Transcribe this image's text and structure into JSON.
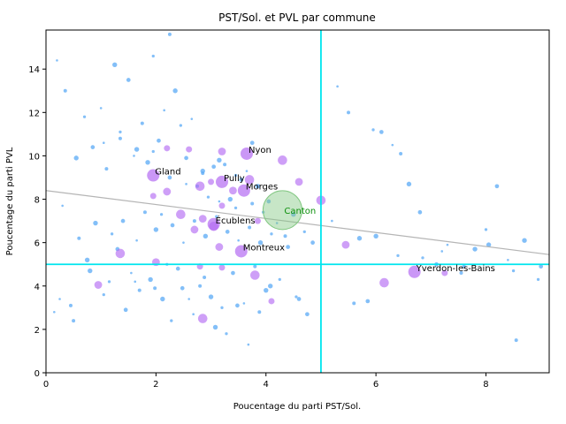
{
  "chart_data": {
    "type": "scatter",
    "title": "PST/Sol. et PVL par commune",
    "xlabel": "Poucentage du parti PST/Sol.",
    "ylabel": "Poucentage du parti PVL",
    "xlim": [
      0,
      9.15
    ],
    "ylim": [
      0,
      15.8
    ],
    "x_ticks": [
      0,
      2,
      4,
      6,
      8
    ],
    "y_ticks": [
      0,
      2,
      4,
      6,
      8,
      10,
      12,
      14
    ],
    "grid": false,
    "colors": {
      "small_points": "#5aaaf5",
      "large_points": "#b36bf2",
      "canton_point": "#82c782",
      "reference_lines": "#00e5ee",
      "regression_line": "#b5b5b5",
      "canton_label": "#0b8f0b"
    },
    "reference_lines": {
      "x": 5.0,
      "y": 5.0
    },
    "regression_line": {
      "x": [
        0,
        9.15
      ],
      "y": [
        8.4,
        5.45
      ]
    },
    "canton": {
      "x": 4.3,
      "y": 7.5,
      "label": "Canton"
    },
    "labeled_points": [
      {
        "label": "Nyon",
        "x": 3.65,
        "y": 10.1
      },
      {
        "label": "Gland",
        "x": 1.95,
        "y": 9.1
      },
      {
        "label": "Pully",
        "x": 3.2,
        "y": 8.8
      },
      {
        "label": "Morges",
        "x": 3.6,
        "y": 8.4
      },
      {
        "label": "Écublens",
        "x": 3.05,
        "y": 6.85
      },
      {
        "label": "Montreux",
        "x": 3.55,
        "y": 5.6
      },
      {
        "label": "Yverdon-les-Bains",
        "x": 6.7,
        "y": 4.65
      }
    ],
    "large_points": [
      [
        2.2,
        10.35
      ],
      [
        3.2,
        10.2
      ],
      [
        4.3,
        9.8
      ],
      [
        2.6,
        10.3
      ],
      [
        4.6,
        8.8
      ],
      [
        5.0,
        7.95
      ],
      [
        3.85,
        7.0
      ],
      [
        2.2,
        8.35
      ],
      [
        2.8,
        8.6
      ],
      [
        3.0,
        8.8
      ],
      [
        3.4,
        8.4
      ],
      [
        3.7,
        8.9
      ],
      [
        1.95,
        8.15
      ],
      [
        2.85,
        7.1
      ],
      [
        3.05,
        6.75
      ],
      [
        3.2,
        7.7
      ],
      [
        2.7,
        6.6
      ],
      [
        2.45,
        7.3
      ],
      [
        2.8,
        4.9
      ],
      [
        3.15,
        5.8
      ],
      [
        3.8,
        4.5
      ],
      [
        4.1,
        3.3
      ],
      [
        5.45,
        5.9
      ],
      [
        6.15,
        4.15
      ],
      [
        7.25,
        4.6
      ],
      [
        0.95,
        4.05
      ],
      [
        2.85,
        2.5
      ],
      [
        3.2,
        4.85
      ],
      [
        2.0,
        5.1
      ],
      [
        1.35,
        5.5
      ]
    ],
    "series": [
      {
        "x": [
          0.2,
          0.35,
          0.55,
          0.7,
          0.85,
          1.0,
          1.1,
          1.25,
          1.35,
          1.5,
          1.6,
          1.75,
          1.85,
          1.95,
          2.05,
          2.15,
          2.25,
          2.35,
          2.45,
          2.55,
          2.65,
          2.75,
          2.85,
          2.95,
          3.05,
          3.15,
          3.25,
          3.35,
          3.45,
          3.55,
          3.65,
          3.75,
          3.85,
          3.95,
          4.05,
          4.2,
          4.35,
          4.5,
          4.7,
          4.85,
          0.3,
          0.6,
          0.9,
          1.2,
          1.4,
          1.65,
          1.8,
          2.0,
          2.1,
          2.3,
          2.5,
          2.7,
          2.9,
          3.1,
          3.3,
          3.5,
          3.7,
          3.9,
          4.1,
          4.4,
          0.15,
          0.45,
          0.75,
          1.05,
          1.3,
          1.55,
          1.7,
          1.9,
          2.2,
          2.4,
          2.6,
          2.8,
          3.0,
          3.2,
          3.4,
          3.6,
          3.8,
          4.0,
          4.25,
          4.6,
          0.25,
          0.5,
          0.8,
          1.15,
          1.45,
          1.62,
          1.98,
          2.12,
          2.28,
          2.48,
          2.68,
          2.88,
          3.08,
          3.28,
          3.48,
          3.68,
          3.88,
          4.08,
          4.55,
          4.75,
          1.05,
          1.35,
          1.65,
          1.95,
          2.25,
          2.55,
          2.85,
          3.15,
          3.45,
          3.75,
          5.3,
          5.5,
          5.7,
          5.95,
          6.1,
          6.3,
          6.45,
          6.6,
          6.85,
          7.1,
          7.3,
          7.55,
          7.8,
          8.0,
          8.2,
          8.4,
          8.55,
          8.7,
          8.95,
          9.0,
          5.2,
          5.6,
          6.0,
          6.4,
          6.8,
          7.2,
          7.6,
          8.05,
          8.5,
          5.85
        ],
        "y": [
          14.4,
          13.0,
          9.9,
          11.8,
          10.4,
          12.2,
          9.4,
          14.2,
          11.1,
          13.5,
          10.0,
          11.5,
          9.7,
          14.6,
          10.7,
          12.1,
          15.6,
          13.0,
          11.4,
          9.9,
          11.7,
          8.6,
          9.3,
          8.1,
          9.5,
          7.9,
          9.6,
          8.0,
          7.6,
          8.9,
          9.3,
          7.8,
          8.6,
          7.4,
          7.9,
          6.9,
          6.3,
          7.3,
          6.5,
          6.0,
          7.7,
          6.2,
          6.9,
          6.4,
          7.0,
          6.1,
          7.4,
          6.6,
          7.3,
          6.8,
          6.0,
          7.0,
          6.3,
          7.2,
          6.5,
          6.1,
          6.7,
          6.0,
          6.4,
          5.8,
          2.8,
          3.1,
          5.2,
          3.6,
          5.7,
          4.6,
          3.8,
          4.3,
          5.0,
          4.8,
          3.4,
          4.0,
          3.5,
          3.0,
          4.6,
          3.2,
          4.9,
          3.8,
          4.3,
          3.4,
          3.4,
          2.4,
          4.7,
          4.2,
          2.9,
          4.2,
          3.9,
          3.4,
          2.4,
          3.9,
          2.7,
          4.4,
          2.1,
          1.8,
          3.1,
          1.3,
          2.8,
          4.0,
          3.5,
          2.7,
          10.6,
          10.8,
          10.3,
          10.2,
          9.0,
          8.7,
          9.2,
          9.8,
          9.1,
          10.6,
          13.2,
          12.0,
          6.2,
          11.2,
          11.1,
          10.5,
          10.1,
          8.7,
          5.3,
          5.0,
          5.9,
          4.6,
          5.7,
          6.6,
          8.6,
          5.2,
          1.5,
          6.1,
          4.3,
          4.9,
          7.0,
          3.2,
          6.3,
          5.4,
          7.4,
          5.6,
          4.9,
          5.9,
          4.7,
          3.3
        ]
      }
    ]
  }
}
